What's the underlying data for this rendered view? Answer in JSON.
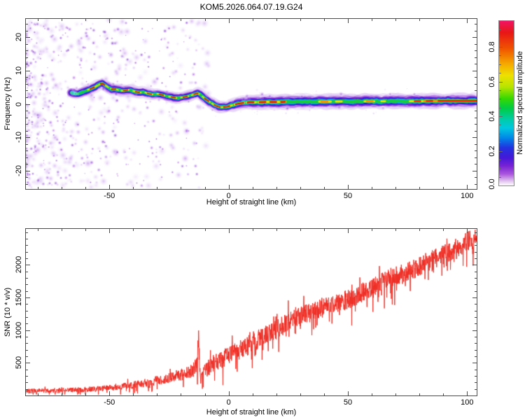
{
  "title": "KOM5.2026.064.07.19.G24",
  "colors": {
    "axis": "#4a4a4a",
    "text": "#000000",
    "snr_line": "#ee2d24",
    "background": "#ffffff"
  },
  "colorbar": {
    "label": "Normalized spectral amplitude",
    "vmin": 0.0,
    "vmax": 0.95,
    "ticks": [
      0.0,
      0.2,
      0.4,
      0.6,
      0.8
    ],
    "tick_labels": [
      "0.0",
      "0.2",
      "0.4",
      "0.6",
      "0.8"
    ],
    "minor_step": 0.05,
    "gradient_top_to_bottom": [
      [
        "#f01464",
        0
      ],
      [
        "#e81616",
        7
      ],
      [
        "#f05500",
        17
      ],
      [
        "#f5a800",
        26
      ],
      [
        "#eee000",
        33
      ],
      [
        "#b8e400",
        40
      ],
      [
        "#38d800",
        47
      ],
      [
        "#00cc44",
        53
      ],
      [
        "#00ccaa",
        60
      ],
      [
        "#00c8e0",
        65
      ],
      [
        "#0088e8",
        71
      ],
      [
        "#2233e0",
        77
      ],
      [
        "#4418d8",
        83
      ],
      [
        "#7722d4",
        88
      ],
      [
        "#aa55dd",
        93
      ],
      [
        "#ddbbee",
        97
      ],
      [
        "#ffffff",
        100
      ]
    ]
  },
  "chart_data": [
    {
      "type": "heatmap",
      "description": "Doppler spectrogram of normalized spectral amplitude: bright wiggly trace near 0 Hz emerging at -66 km, flattening to ~+0.8 Hz above 0 km; dense purple speckle noise below -40 km",
      "xlabel": "Height of straight line (km)",
      "ylabel": "Frequency (Hz)",
      "xlim": [
        -85,
        104
      ],
      "ylim": [
        -25.5,
        25.5
      ],
      "xticks": [
        -50,
        0,
        50,
        100
      ],
      "xtick_labels": [
        "-50",
        "0",
        "50",
        "100"
      ],
      "x_minor_step": 10,
      "yticks": [
        -20,
        -10,
        0,
        10,
        20
      ],
      "ytick_labels": [
        "-20",
        "-10",
        "0",
        "10",
        "20"
      ],
      "y_minor_step": 2,
      "trace": [
        [
          -66,
          3.4
        ],
        [
          -64.5,
          3.1
        ],
        [
          -63,
          3.0
        ],
        [
          -61.5,
          3.6
        ],
        [
          -60,
          3.9
        ],
        [
          -58.5,
          4.4
        ],
        [
          -57,
          4.8
        ],
        [
          -55.5,
          5.3
        ],
        [
          -54,
          5.9
        ],
        [
          -53,
          6.2
        ],
        [
          -52,
          5.7
        ],
        [
          -50.5,
          5.0
        ],
        [
          -49,
          4.4
        ],
        [
          -47.5,
          4.5
        ],
        [
          -46,
          4.1
        ],
        [
          -44.5,
          3.9
        ],
        [
          -43,
          4.1
        ],
        [
          -41.5,
          4.3
        ],
        [
          -40,
          3.9
        ],
        [
          -38.5,
          3.6
        ],
        [
          -37,
          3.4
        ],
        [
          -35.5,
          3.6
        ],
        [
          -34,
          3.2
        ],
        [
          -32.5,
          2.9
        ],
        [
          -31,
          2.9
        ],
        [
          -29.5,
          3.1
        ],
        [
          -28,
          2.7
        ],
        [
          -26.5,
          2.4
        ],
        [
          -25,
          2.2
        ],
        [
          -23.5,
          2.0
        ],
        [
          -22,
          1.8
        ],
        [
          -20.5,
          1.9
        ],
        [
          -19,
          2.0
        ],
        [
          -17.5,
          2.2
        ],
        [
          -16,
          2.5
        ],
        [
          -14.5,
          2.9
        ],
        [
          -13.5,
          3.2
        ],
        [
          -12.5,
          3.1
        ],
        [
          -11.5,
          2.6
        ],
        [
          -10.5,
          1.9
        ],
        [
          -9.5,
          1.3
        ],
        [
          -8.5,
          0.9
        ],
        [
          -7.5,
          0.4
        ],
        [
          -6.5,
          -0.1
        ],
        [
          -5.5,
          -0.5
        ],
        [
          -4.5,
          -0.8
        ],
        [
          -3.5,
          -1.0
        ],
        [
          -2.5,
          -1.0
        ],
        [
          -1.5,
          -0.9
        ],
        [
          -0.5,
          -0.8
        ],
        [
          0.5,
          -0.6
        ],
        [
          1.5,
          -0.4
        ],
        [
          2.5,
          -0.2
        ],
        [
          3.5,
          0.0
        ],
        [
          5,
          0.2
        ],
        [
          7,
          0.4
        ],
        [
          9,
          0.5
        ],
        [
          12,
          0.5
        ],
        [
          16,
          0.6
        ],
        [
          20,
          0.6
        ],
        [
          25,
          0.65
        ],
        [
          30,
          0.7
        ],
        [
          40,
          0.7
        ],
        [
          50,
          0.75
        ],
        [
          60,
          0.8
        ],
        [
          70,
          0.8
        ],
        [
          80,
          0.85
        ],
        [
          90,
          0.9
        ],
        [
          104,
          0.9
        ]
      ],
      "trace_layers": [
        {
          "w": 15.0,
          "color": "rgba(225,205,245,0.50)"
        },
        {
          "w": 10.5,
          "color": "rgba(178,119,230,0.65)"
        },
        {
          "w": 8.0,
          "color": "rgba(122,31,208,0.92)"
        },
        {
          "w": 6.0,
          "color": "#2a1ae0"
        },
        {
          "w": 4.4,
          "color": "#00b4e0"
        },
        {
          "w": 3.1,
          "color": "#19cc3c"
        }
      ],
      "yellow_core": {
        "w": 2.1,
        "color": "#e6e400",
        "segments": [
          [
            -59,
            -55
          ],
          [
            -54.5,
            -50.5
          ],
          [
            -49.5,
            -46
          ],
          [
            -45,
            -41.5
          ],
          [
            -40,
            -36.5
          ],
          [
            -35,
            -31.5
          ],
          [
            -30,
            -26.5
          ],
          [
            -25,
            -21.5
          ],
          [
            -20,
            -16.5
          ],
          [
            -15.5,
            -12
          ],
          [
            -11,
            -7.5
          ],
          [
            -7,
            -3
          ],
          [
            -2.5,
            2
          ],
          [
            2.5,
            7
          ],
          [
            7.5,
            12
          ],
          [
            12.5,
            16.5
          ],
          [
            17,
            21
          ],
          [
            21.5,
            24.5
          ],
          [
            38,
            43
          ],
          [
            45,
            48
          ],
          [
            57,
            61
          ],
          [
            64,
            66
          ],
          [
            76,
            104
          ]
        ]
      },
      "orange_core": {
        "w": 2.1,
        "color": "#ff9000",
        "segments": [
          [
            39,
            42
          ],
          [
            58,
            61
          ],
          [
            82,
            104
          ]
        ]
      },
      "red_core": {
        "w": 1.9,
        "color": "#ee2000",
        "segments": [
          [
            -58,
            -56.2
          ],
          [
            -53.6,
            -51.6
          ],
          [
            -49,
            -47.2
          ],
          [
            -44,
            -42.2
          ],
          [
            -39,
            -37.2
          ],
          [
            -34,
            -32.2
          ],
          [
            -29,
            -27.2
          ],
          [
            -24,
            -22.3
          ],
          [
            -19,
            -17.2
          ],
          [
            -14.5,
            -12.6
          ],
          [
            -10,
            -8.1
          ],
          [
            -6,
            -3.6
          ],
          [
            -2,
            1
          ],
          [
            3,
            6.4
          ],
          [
            8,
            11
          ],
          [
            13,
            16
          ],
          [
            17.5,
            20.5
          ],
          [
            22,
            24
          ],
          [
            78,
            81
          ],
          [
            83,
            86
          ],
          [
            88,
            104
          ]
        ]
      },
      "start_blob": {
        "km": -64.8,
        "hz": 3.2,
        "colors": [
          "#00c4ea",
          "#00d4d0",
          "#20cc66"
        ]
      },
      "noise": {
        "x_range": [
          -85,
          -8
        ],
        "falloff_pow": 1.75,
        "halo_count": 430,
        "core_count": 300,
        "near_band_count": 48,
        "halo_palette": [
          "#c9a0ee",
          "#b077e6",
          "#9944dd",
          "#a86ae2"
        ],
        "core_palette": [
          "#8a2be2",
          "#7a1fd0",
          "#6a18c2",
          "#9330d8"
        ]
      }
    },
    {
      "type": "line",
      "description": "SNR profile rising noisily from ~70 at -85 km to ~2400 at 104 km, with a sharp spike/dropout near -12.6 km",
      "xlabel": "Height of straight line (km)",
      "ylabel": "SNR (10 * v/v)",
      "xlim": [
        -85,
        104
      ],
      "ylim": [
        0,
        2550
      ],
      "xticks": [
        -50,
        0,
        50,
        100
      ],
      "xtick_labels": [
        "-50",
        "0",
        "50",
        "100"
      ],
      "x_minor_step": 10,
      "yticks": [
        500,
        1000,
        1500,
        2000
      ],
      "ytick_labels": [
        "500",
        "1000",
        "1500",
        "2000"
      ],
      "y_minor_step": 100,
      "line_color": "#ee2d24",
      "trend": [
        [
          -86,
          65
        ],
        [
          -78,
          72
        ],
        [
          -70,
          78
        ],
        [
          -62,
          88
        ],
        [
          -55,
          100
        ],
        [
          -48,
          125
        ],
        [
          -42,
          150
        ],
        [
          -36,
          185
        ],
        [
          -30,
          230
        ],
        [
          -26,
          265
        ],
        [
          -22,
          300
        ],
        [
          -18,
          340
        ],
        [
          -15,
          380
        ],
        [
          -13.4,
          480
        ],
        [
          -12.6,
          860
        ],
        [
          -12.1,
          420
        ],
        [
          -11.7,
          210
        ],
        [
          -11.2,
          380
        ],
        [
          -10.5,
          430
        ],
        [
          -9,
          400
        ],
        [
          -8,
          460
        ],
        [
          -6,
          500
        ],
        [
          -4,
          540
        ],
        [
          -2,
          575
        ],
        [
          0,
          615
        ],
        [
          2,
          655
        ],
        [
          4,
          690
        ],
        [
          6,
          725
        ],
        [
          8,
          765
        ],
        [
          10,
          825
        ],
        [
          13,
          880
        ],
        [
          16,
          930
        ],
        [
          20,
          1010
        ],
        [
          24,
          1100
        ],
        [
          28,
          1180
        ],
        [
          32,
          1245
        ],
        [
          36,
          1305
        ],
        [
          40,
          1360
        ],
        [
          44,
          1405
        ],
        [
          48,
          1445
        ],
        [
          52,
          1495
        ],
        [
          56,
          1575
        ],
        [
          60,
          1660
        ],
        [
          64,
          1740
        ],
        [
          68,
          1805
        ],
        [
          72,
          1860
        ],
        [
          76,
          1905
        ],
        [
          80,
          1985
        ],
        [
          84,
          2060
        ],
        [
          88,
          2125
        ],
        [
          92,
          2185
        ],
        [
          96,
          2265
        ],
        [
          100,
          2360
        ],
        [
          104,
          2420
        ]
      ],
      "noise_model": {
        "base": 20,
        "scale": 0.22,
        "cap": 150,
        "step_km": 0.1,
        "dip_prob": 0.05
      }
    }
  ]
}
